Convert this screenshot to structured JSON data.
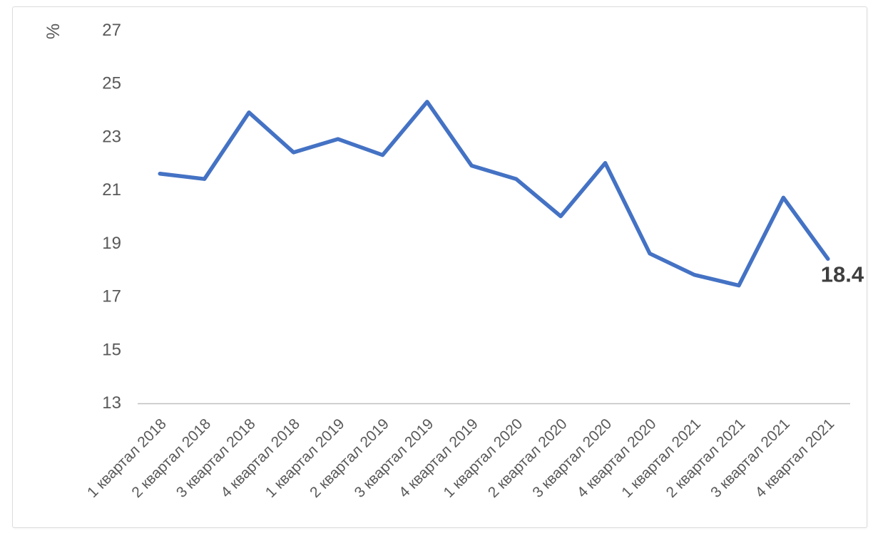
{
  "chart_data": {
    "type": "line",
    "title": "",
    "ylabel": "%",
    "xlabel": "",
    "categories": [
      "1 квартал 2018",
      "2 квартал 2018",
      "3 квартал 2018",
      "4 квартал 2018",
      "1 квартал 2019",
      "2 квартал 2019",
      "3 квартал 2019",
      "4 квартал 2019",
      "1 квартал 2020",
      "2 квартал 2020",
      "3 квартал 2020",
      "4 квартал 2020",
      "1 квартал 2021",
      "2 квартал 2021",
      "3 квартал 2021",
      "4 квартал 2021"
    ],
    "series": [
      {
        "values": [
          21.6,
          21.4,
          23.9,
          22.4,
          22.9,
          22.3,
          24.3,
          21.9,
          21.4,
          20.0,
          22.0,
          18.6,
          17.8,
          17.4,
          20.7,
          18.4
        ]
      }
    ],
    "ylim": [
      13,
      27
    ],
    "yticks": [
      13,
      15,
      17,
      19,
      21,
      23,
      25,
      27
    ],
    "grid": false,
    "legend_position": "none",
    "x_label_rotation_deg": -45,
    "end_label": "18.4",
    "colors": {
      "line": "#4472C4",
      "axis_text": "#595959",
      "axis_line": "#BFBFBF",
      "end_label_text": "#3F3F3F",
      "frame_border": "#DCDCDC"
    }
  }
}
